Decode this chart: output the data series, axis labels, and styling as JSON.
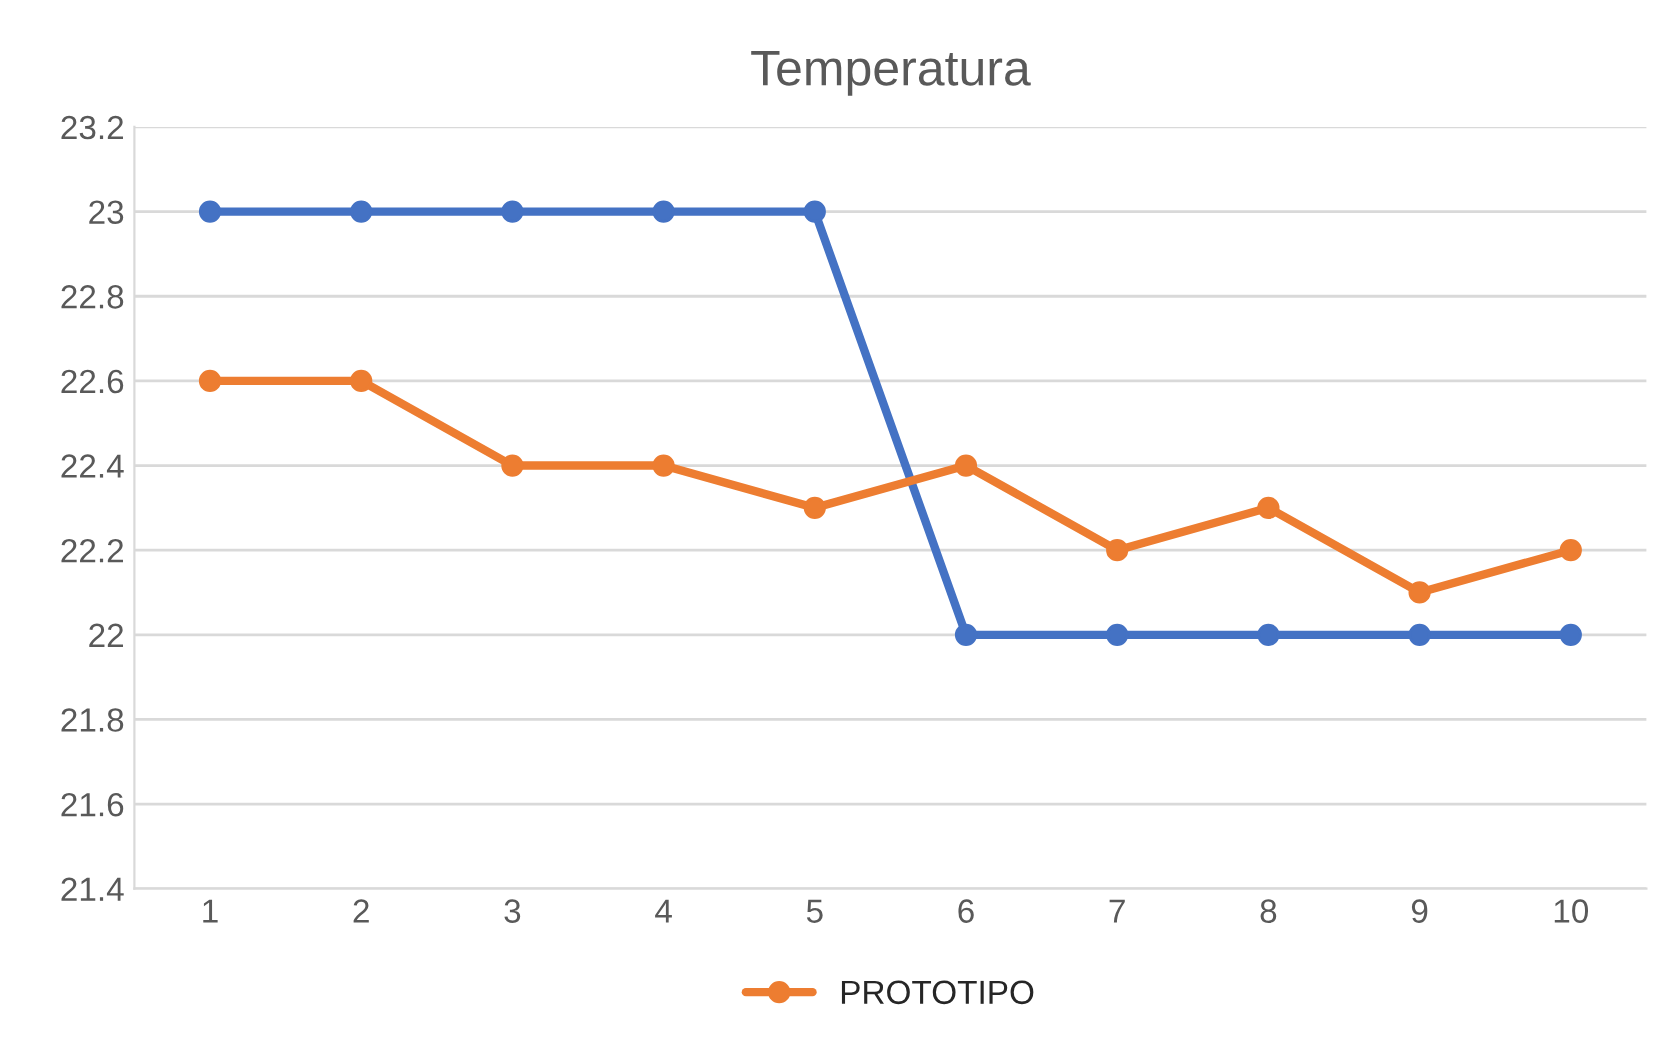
{
  "chart_data": {
    "type": "line",
    "title": "Temperatura",
    "categories": [
      "1",
      "2",
      "3",
      "4",
      "5",
      "6",
      "7",
      "8",
      "9",
      "10"
    ],
    "series": [
      {
        "color": "#4472c4",
        "values": [
          23,
          23,
          23,
          23,
          23,
          22,
          22,
          22,
          22,
          22
        ]
      },
      {
        "name": "PROTOTIPO",
        "color": "#ed7d31",
        "values": [
          22.6,
          22.6,
          22.4,
          22.4,
          22.3,
          22.4,
          22.2,
          22.3,
          22.1,
          22.2
        ]
      }
    ],
    "ylim": [
      21.4,
      23.2
    ],
    "yticks": [
      21.4,
      21.6,
      21.8,
      22,
      22.2,
      22.4,
      22.6,
      22.8,
      23,
      23.2
    ],
    "grid": "y",
    "legend": "bottom",
    "marker": "circle",
    "line_style": "solid"
  }
}
